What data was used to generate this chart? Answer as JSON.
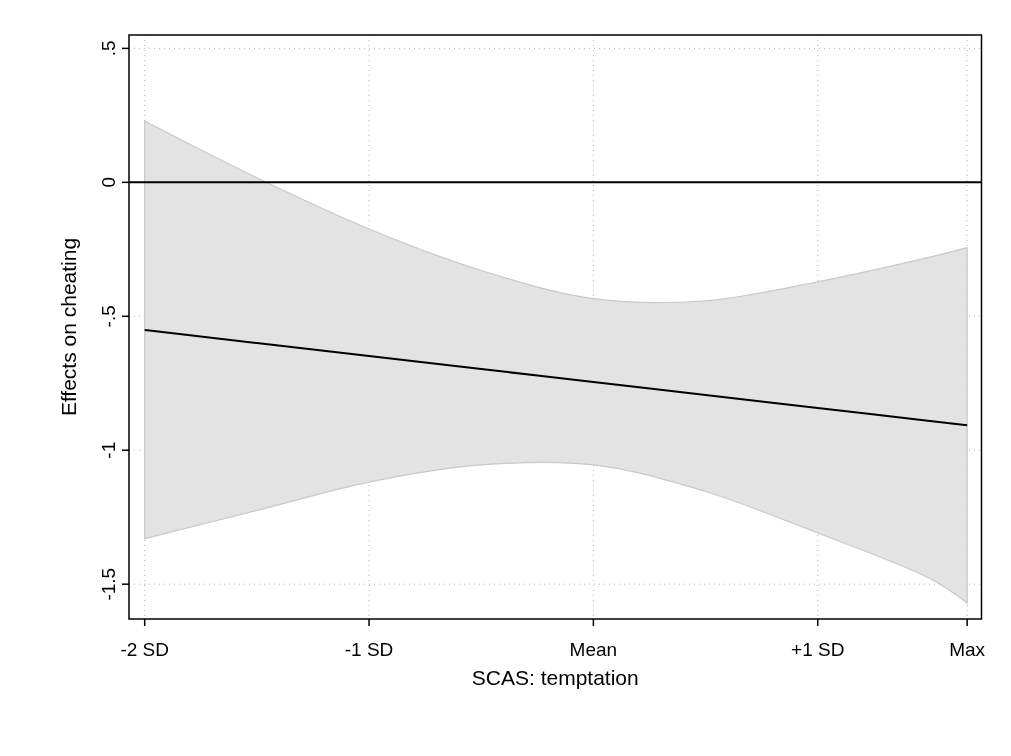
{
  "chart_data": {
    "type": "line",
    "xlabel": "SCAS: temptation",
    "ylabel": "Effects on cheating",
    "xlim": [
      -2.07,
      1.73
    ],
    "ylim": [
      -1.63,
      0.55
    ],
    "xticks": [
      {
        "value": -2,
        "label": "-2 SD"
      },
      {
        "value": -1,
        "label": "-1 SD"
      },
      {
        "value": 0,
        "label": "Mean"
      },
      {
        "value": 1,
        "label": "+1 SD"
      },
      {
        "value": 1.666,
        "label": "Max"
      }
    ],
    "yticks": [
      {
        "value": 0.5,
        "label": ".5"
      },
      0,
      {
        "value": -0.5,
        "label": "-.5"
      },
      -1,
      -1.5
    ],
    "grid": true,
    "ref_lines": [
      {
        "axis": "y",
        "value": 0,
        "color": "#000000"
      }
    ],
    "series": [
      {
        "color": "#000000",
        "x": [
          -2,
          -1.5,
          -1,
          -0.5,
          0,
          0.5,
          1,
          1.5,
          1.666
        ],
        "values": [
          -0.551,
          -0.6,
          -0.648,
          -0.697,
          -0.745,
          -0.794,
          -0.842,
          -0.891,
          -0.907
        ],
        "lower": [
          -1.33,
          -1.225,
          -1.119,
          -1.055,
          -1.055,
          -1.154,
          -1.309,
          -1.479,
          -1.57
        ],
        "upper": [
          0.229,
          0.017,
          -0.174,
          -0.329,
          -0.434,
          -0.442,
          -0.371,
          -0.279,
          -0.244
        ]
      }
    ]
  }
}
